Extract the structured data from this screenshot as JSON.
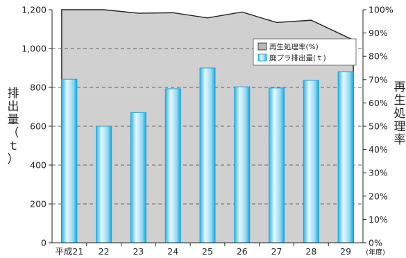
{
  "chart_data": {
    "type": "bar+area",
    "categories": [
      "平成21",
      "22",
      "23",
      "24",
      "25",
      "26",
      "27",
      "28",
      "29"
    ],
    "x_unit": "(年度)",
    "series": [
      {
        "name": "廃プラ排出量(ｔ)",
        "type": "bar",
        "axis": "left",
        "values": [
          842,
          600,
          670,
          793,
          900,
          803,
          797,
          836,
          880
        ]
      },
      {
        "name": "再生処理率(%)",
        "type": "area",
        "axis": "right",
        "values": [
          100,
          100,
          98.5,
          98.7,
          96.5,
          99,
          94.5,
          95.5,
          87
        ]
      }
    ],
    "left_axis": {
      "label": "排出量（ｔ）",
      "ylim": [
        0,
        1200
      ],
      "ticks": [
        "0",
        "200",
        "400",
        "600",
        "800",
        "1,000",
        "1,200"
      ]
    },
    "right_axis": {
      "label": "再生処理率",
      "ylim": [
        0,
        100
      ],
      "ticks": [
        "0%",
        "10%",
        "20%",
        "30%",
        "40%",
        "50%",
        "60%",
        "70%",
        "80%",
        "90%",
        "100%"
      ]
    },
    "grid": "dashed horizontal",
    "legend_position": "top-right",
    "colors": {
      "bar_edge": "#1aa7dc",
      "bar_light": "#e6f7fd",
      "bar_mid": "#8fd9f4",
      "area_fill": "#d0d0d0",
      "area_line": "#222222"
    }
  }
}
